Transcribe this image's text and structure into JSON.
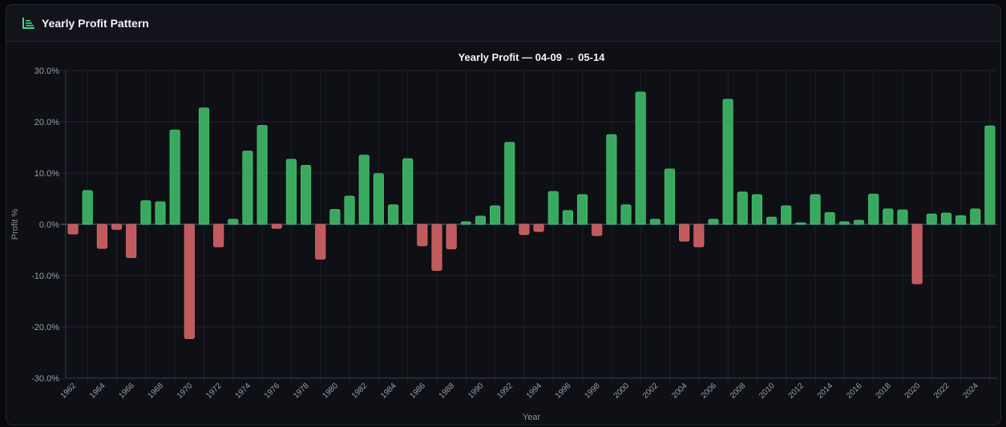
{
  "panel": {
    "title": "Yearly Profit Pattern",
    "icon": "bar-chart-icon"
  },
  "colors": {
    "positive": "#3aa960",
    "negative": "#c05a5c",
    "accent": "#3ddc84"
  },
  "chart_data": {
    "type": "bar",
    "title": "Yearly Profit — 04-09 → 05-14",
    "xlabel": "Year",
    "ylabel": "Profit %",
    "ylim": [
      -30,
      30
    ],
    "yticks": [
      "30.0%",
      "20.0%",
      "10.0%",
      "0.0%",
      "-10.0%",
      "-20.0%",
      "-30.0%"
    ],
    "grid": true,
    "legend": "none",
    "categories": [
      1962,
      1963,
      1964,
      1965,
      1966,
      1967,
      1968,
      1969,
      1970,
      1971,
      1972,
      1973,
      1974,
      1975,
      1976,
      1977,
      1978,
      1979,
      1980,
      1981,
      1982,
      1983,
      1984,
      1985,
      1986,
      1987,
      1988,
      1989,
      1990,
      1991,
      1992,
      1993,
      1994,
      1995,
      1996,
      1997,
      1998,
      1999,
      2000,
      2001,
      2002,
      2003,
      2004,
      2005,
      2006,
      2007,
      2008,
      2009,
      2010,
      2011,
      2012,
      2013,
      2014,
      2015,
      2016,
      2017,
      2018,
      2019,
      2020,
      2021,
      2022,
      2023,
      2024,
      2025
    ],
    "values": [
      -1.9,
      6.6,
      -4.7,
      -1.0,
      -6.5,
      4.6,
      4.4,
      18.4,
      -22.3,
      22.7,
      -4.4,
      1.0,
      14.3,
      19.3,
      -0.8,
      12.7,
      11.5,
      -6.8,
      2.9,
      5.5,
      13.5,
      9.9,
      3.8,
      12.8,
      -4.2,
      -9.0,
      -4.8,
      0.5,
      1.6,
      3.6,
      16.0,
      -2.0,
      -1.4,
      6.4,
      2.7,
      5.8,
      -2.2,
      17.5,
      3.8,
      25.8,
      1.0,
      10.8,
      -3.3,
      -4.4,
      1.0,
      24.4,
      6.3,
      5.8,
      1.4,
      3.6,
      0.3,
      5.8,
      2.3,
      0.5,
      0.8,
      5.9,
      3.0,
      2.8,
      -11.6,
      2.0,
      2.2,
      1.7,
      3.0,
      19.2
    ]
  }
}
